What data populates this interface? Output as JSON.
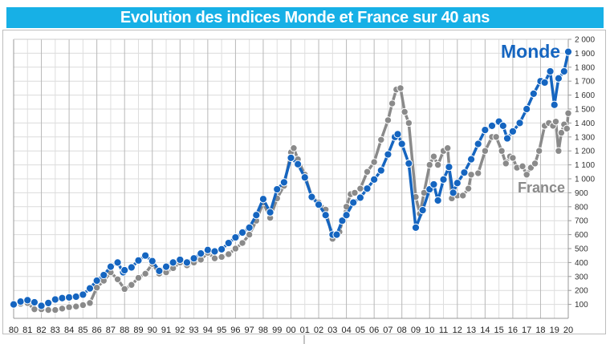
{
  "chart_data": {
    "type": "line",
    "title": "Evolution des indices Monde et France sur 40 ans",
    "xlabel": "",
    "ylabel": "",
    "xlim": [
      1980,
      2020
    ],
    "ylim": [
      0,
      2000
    ],
    "grid": true,
    "y_axis_side": "right",
    "x_tick_labels": [
      "80",
      "81",
      "82",
      "83",
      "84",
      "85",
      "86",
      "87",
      "88",
      "89",
      "90",
      "91",
      "92",
      "93",
      "94",
      "95",
      "96",
      "97",
      "98",
      "99",
      "00",
      "01",
      "02",
      "03",
      "04",
      "05",
      "06",
      "07",
      "08",
      "09",
      "10",
      "11",
      "12",
      "13",
      "14",
      "15",
      "16",
      "17",
      "18",
      "19",
      "20"
    ],
    "y_tick_labels": [
      "100",
      "200",
      "300",
      "400",
      "500",
      "600",
      "700",
      "800",
      "900",
      "1 000",
      "1 100",
      "1 200",
      "1 300",
      "1 400",
      "1 500",
      "1 600",
      "1 700",
      "1 800",
      "1 900",
      "2 000"
    ],
    "y_tick_values": [
      100,
      200,
      300,
      400,
      500,
      600,
      700,
      800,
      900,
      1000,
      1100,
      1200,
      1300,
      1400,
      1500,
      1600,
      1700,
      1800,
      1900,
      2000
    ],
    "series": [
      {
        "name": "Monde",
        "color": "#1565c0",
        "points": [
          [
            1980,
            100
          ],
          [
            1980.5,
            120
          ],
          [
            1981,
            130
          ],
          [
            1981.5,
            115
          ],
          [
            1982,
            90
          ],
          [
            1982.5,
            110
          ],
          [
            1983,
            135
          ],
          [
            1983.5,
            145
          ],
          [
            1984,
            150
          ],
          [
            1984.5,
            155
          ],
          [
            1985,
            170
          ],
          [
            1985.5,
            215
          ],
          [
            1986,
            270
          ],
          [
            1986.5,
            310
          ],
          [
            1987,
            370
          ],
          [
            1987.5,
            400
          ],
          [
            1987.9,
            330
          ],
          [
            1988,
            345
          ],
          [
            1988.5,
            365
          ],
          [
            1989,
            415
          ],
          [
            1989.5,
            450
          ],
          [
            1990,
            410
          ],
          [
            1990.5,
            340
          ],
          [
            1991,
            370
          ],
          [
            1991.5,
            400
          ],
          [
            1992,
            420
          ],
          [
            1992.5,
            400
          ],
          [
            1993,
            430
          ],
          [
            1993.5,
            465
          ],
          [
            1994,
            490
          ],
          [
            1994.5,
            480
          ],
          [
            1995,
            495
          ],
          [
            1995.5,
            540
          ],
          [
            1996,
            580
          ],
          [
            1996.5,
            615
          ],
          [
            1997,
            650
          ],
          [
            1997.5,
            740
          ],
          [
            1998,
            855
          ],
          [
            1998.5,
            760
          ],
          [
            1999,
            925
          ],
          [
            1999.5,
            975
          ],
          [
            2000,
            1150
          ],
          [
            2000.5,
            1105
          ],
          [
            2001,
            1010
          ],
          [
            2001.5,
            870
          ],
          [
            2002,
            815
          ],
          [
            2002.5,
            740
          ],
          [
            2003,
            600
          ],
          [
            2003.3,
            600
          ],
          [
            2003.7,
            700
          ],
          [
            2004,
            740
          ],
          [
            2004.5,
            830
          ],
          [
            2005,
            865
          ],
          [
            2005.5,
            930
          ],
          [
            2006,
            995
          ],
          [
            2006.5,
            1060
          ],
          [
            2007,
            1175
          ],
          [
            2007.5,
            1300
          ],
          [
            2007.7,
            1320
          ],
          [
            2008,
            1250
          ],
          [
            2008.5,
            1110
          ],
          [
            2009,
            650
          ],
          [
            2009.5,
            775
          ],
          [
            2010,
            925
          ],
          [
            2010.3,
            960
          ],
          [
            2010.6,
            845
          ],
          [
            2011,
            995
          ],
          [
            2011.4,
            1085
          ],
          [
            2011.7,
            900
          ],
          [
            2012,
            970
          ],
          [
            2012.5,
            1045
          ],
          [
            2013,
            1140
          ],
          [
            2013.5,
            1250
          ],
          [
            2014,
            1350
          ],
          [
            2014.5,
            1380
          ],
          [
            2015,
            1410
          ],
          [
            2015.3,
            1380
          ],
          [
            2015.6,
            1290
          ],
          [
            2016,
            1340
          ],
          [
            2016.5,
            1400
          ],
          [
            2017,
            1500
          ],
          [
            2017.5,
            1610
          ],
          [
            2018,
            1700
          ],
          [
            2018.3,
            1690
          ],
          [
            2018.7,
            1770
          ],
          [
            2019,
            1530
          ],
          [
            2019.3,
            1720
          ],
          [
            2019.7,
            1770
          ],
          [
            2020,
            1910
          ]
        ]
      },
      {
        "name": "France",
        "color": "#8a8a8a",
        "points": [
          [
            1980,
            100
          ],
          [
            1980.5,
            105
          ],
          [
            1981,
            110
          ],
          [
            1981.5,
            65
          ],
          [
            1982,
            65
          ],
          [
            1982.5,
            60
          ],
          [
            1983,
            60
          ],
          [
            1983.5,
            70
          ],
          [
            1984,
            80
          ],
          [
            1984.5,
            85
          ],
          [
            1985,
            95
          ],
          [
            1985.5,
            110
          ],
          [
            1986,
            220
          ],
          [
            1986.5,
            270
          ],
          [
            1987,
            330
          ],
          [
            1987.5,
            280
          ],
          [
            1988,
            210
          ],
          [
            1988.5,
            240
          ],
          [
            1989,
            290
          ],
          [
            1989.5,
            320
          ],
          [
            1990,
            390
          ],
          [
            1990.5,
            320
          ],
          [
            1991,
            330
          ],
          [
            1991.5,
            360
          ],
          [
            1992,
            400
          ],
          [
            1992.5,
            380
          ],
          [
            1993,
            400
          ],
          [
            1993.5,
            420
          ],
          [
            1994,
            470
          ],
          [
            1994.5,
            430
          ],
          [
            1995,
            440
          ],
          [
            1995.5,
            460
          ],
          [
            1996,
            500
          ],
          [
            1996.5,
            540
          ],
          [
            1997,
            600
          ],
          [
            1997.5,
            700
          ],
          [
            1998,
            830
          ],
          [
            1998.5,
            720
          ],
          [
            1999,
            860
          ],
          [
            1999.5,
            950
          ],
          [
            2000,
            1190
          ],
          [
            2000.2,
            1220
          ],
          [
            2000.5,
            1140
          ],
          [
            2001,
            1030
          ],
          [
            2001.5,
            870
          ],
          [
            2002,
            830
          ],
          [
            2002.5,
            780
          ],
          [
            2003,
            570
          ],
          [
            2003.5,
            620
          ],
          [
            2004,
            800
          ],
          [
            2004.3,
            890
          ],
          [
            2004.6,
            900
          ],
          [
            2005,
            930
          ],
          [
            2005.5,
            1050
          ],
          [
            2006,
            1120
          ],
          [
            2006.5,
            1280
          ],
          [
            2007,
            1420
          ],
          [
            2007.3,
            1540
          ],
          [
            2007.6,
            1640
          ],
          [
            2007.9,
            1650
          ],
          [
            2008.2,
            1480
          ],
          [
            2008.5,
            1400
          ],
          [
            2009,
            870
          ],
          [
            2009.3,
            750
          ],
          [
            2009.6,
            900
          ],
          [
            2010,
            1100
          ],
          [
            2010.3,
            1160
          ],
          [
            2010.6,
            1100
          ],
          [
            2011,
            1200
          ],
          [
            2011.3,
            1220
          ],
          [
            2011.6,
            860
          ],
          [
            2012,
            880
          ],
          [
            2012.4,
            880
          ],
          [
            2012.8,
            930
          ],
          [
            2013,
            1030
          ],
          [
            2013.5,
            1040
          ],
          [
            2014,
            1200
          ],
          [
            2014.5,
            1300
          ],
          [
            2014.8,
            1300
          ],
          [
            2015.2,
            1200
          ],
          [
            2015.5,
            1110
          ],
          [
            2015.8,
            1160
          ],
          [
            2016,
            1150
          ],
          [
            2016.3,
            1080
          ],
          [
            2016.7,
            1090
          ],
          [
            2017,
            1030
          ],
          [
            2017.3,
            1080
          ],
          [
            2017.6,
            1110
          ],
          [
            2017.9,
            1200
          ],
          [
            2018.3,
            1380
          ],
          [
            2018.6,
            1400
          ],
          [
            2018.9,
            1380
          ],
          [
            2019.1,
            1410
          ],
          [
            2019.3,
            1200
          ],
          [
            2019.5,
            1330
          ],
          [
            2019.7,
            1390
          ],
          [
            2019.9,
            1360
          ],
          [
            2020,
            1470
          ]
        ]
      }
    ]
  }
}
